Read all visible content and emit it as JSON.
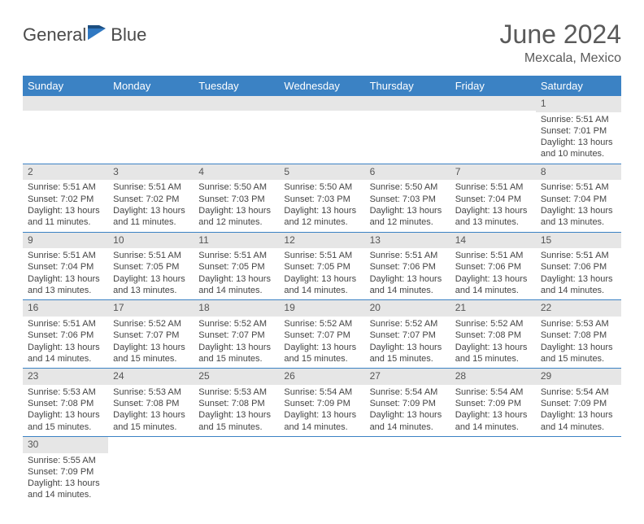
{
  "logo": {
    "word1": "General",
    "word2": "Blue"
  },
  "title": "June 2024",
  "location": "Mexcala, Mexico",
  "colors": {
    "header_bg": "#3b82c4",
    "header_text": "#ffffff",
    "daynum_bg": "#e6e6e6",
    "border": "#3b82c4",
    "title_color": "#5a5a5a",
    "body_text": "#444444"
  },
  "typography": {
    "title_fontsize": 32,
    "location_fontsize": 16,
    "dow_fontsize": 13,
    "cell_fontsize": 11
  },
  "days_of_week": [
    "Sunday",
    "Monday",
    "Tuesday",
    "Wednesday",
    "Thursday",
    "Friday",
    "Saturday"
  ],
  "weeks": [
    [
      null,
      null,
      null,
      null,
      null,
      null,
      {
        "n": "1",
        "sunrise": "Sunrise: 5:51 AM",
        "sunset": "Sunset: 7:01 PM",
        "daylight1": "Daylight: 13 hours",
        "daylight2": "and 10 minutes."
      }
    ],
    [
      {
        "n": "2",
        "sunrise": "Sunrise: 5:51 AM",
        "sunset": "Sunset: 7:02 PM",
        "daylight1": "Daylight: 13 hours",
        "daylight2": "and 11 minutes."
      },
      {
        "n": "3",
        "sunrise": "Sunrise: 5:51 AM",
        "sunset": "Sunset: 7:02 PM",
        "daylight1": "Daylight: 13 hours",
        "daylight2": "and 11 minutes."
      },
      {
        "n": "4",
        "sunrise": "Sunrise: 5:50 AM",
        "sunset": "Sunset: 7:03 PM",
        "daylight1": "Daylight: 13 hours",
        "daylight2": "and 12 minutes."
      },
      {
        "n": "5",
        "sunrise": "Sunrise: 5:50 AM",
        "sunset": "Sunset: 7:03 PM",
        "daylight1": "Daylight: 13 hours",
        "daylight2": "and 12 minutes."
      },
      {
        "n": "6",
        "sunrise": "Sunrise: 5:50 AM",
        "sunset": "Sunset: 7:03 PM",
        "daylight1": "Daylight: 13 hours",
        "daylight2": "and 12 minutes."
      },
      {
        "n": "7",
        "sunrise": "Sunrise: 5:51 AM",
        "sunset": "Sunset: 7:04 PM",
        "daylight1": "Daylight: 13 hours",
        "daylight2": "and 13 minutes."
      },
      {
        "n": "8",
        "sunrise": "Sunrise: 5:51 AM",
        "sunset": "Sunset: 7:04 PM",
        "daylight1": "Daylight: 13 hours",
        "daylight2": "and 13 minutes."
      }
    ],
    [
      {
        "n": "9",
        "sunrise": "Sunrise: 5:51 AM",
        "sunset": "Sunset: 7:04 PM",
        "daylight1": "Daylight: 13 hours",
        "daylight2": "and 13 minutes."
      },
      {
        "n": "10",
        "sunrise": "Sunrise: 5:51 AM",
        "sunset": "Sunset: 7:05 PM",
        "daylight1": "Daylight: 13 hours",
        "daylight2": "and 13 minutes."
      },
      {
        "n": "11",
        "sunrise": "Sunrise: 5:51 AM",
        "sunset": "Sunset: 7:05 PM",
        "daylight1": "Daylight: 13 hours",
        "daylight2": "and 14 minutes."
      },
      {
        "n": "12",
        "sunrise": "Sunrise: 5:51 AM",
        "sunset": "Sunset: 7:05 PM",
        "daylight1": "Daylight: 13 hours",
        "daylight2": "and 14 minutes."
      },
      {
        "n": "13",
        "sunrise": "Sunrise: 5:51 AM",
        "sunset": "Sunset: 7:06 PM",
        "daylight1": "Daylight: 13 hours",
        "daylight2": "and 14 minutes."
      },
      {
        "n": "14",
        "sunrise": "Sunrise: 5:51 AM",
        "sunset": "Sunset: 7:06 PM",
        "daylight1": "Daylight: 13 hours",
        "daylight2": "and 14 minutes."
      },
      {
        "n": "15",
        "sunrise": "Sunrise: 5:51 AM",
        "sunset": "Sunset: 7:06 PM",
        "daylight1": "Daylight: 13 hours",
        "daylight2": "and 14 minutes."
      }
    ],
    [
      {
        "n": "16",
        "sunrise": "Sunrise: 5:51 AM",
        "sunset": "Sunset: 7:06 PM",
        "daylight1": "Daylight: 13 hours",
        "daylight2": "and 14 minutes."
      },
      {
        "n": "17",
        "sunrise": "Sunrise: 5:52 AM",
        "sunset": "Sunset: 7:07 PM",
        "daylight1": "Daylight: 13 hours",
        "daylight2": "and 15 minutes."
      },
      {
        "n": "18",
        "sunrise": "Sunrise: 5:52 AM",
        "sunset": "Sunset: 7:07 PM",
        "daylight1": "Daylight: 13 hours",
        "daylight2": "and 15 minutes."
      },
      {
        "n": "19",
        "sunrise": "Sunrise: 5:52 AM",
        "sunset": "Sunset: 7:07 PM",
        "daylight1": "Daylight: 13 hours",
        "daylight2": "and 15 minutes."
      },
      {
        "n": "20",
        "sunrise": "Sunrise: 5:52 AM",
        "sunset": "Sunset: 7:07 PM",
        "daylight1": "Daylight: 13 hours",
        "daylight2": "and 15 minutes."
      },
      {
        "n": "21",
        "sunrise": "Sunrise: 5:52 AM",
        "sunset": "Sunset: 7:08 PM",
        "daylight1": "Daylight: 13 hours",
        "daylight2": "and 15 minutes."
      },
      {
        "n": "22",
        "sunrise": "Sunrise: 5:53 AM",
        "sunset": "Sunset: 7:08 PM",
        "daylight1": "Daylight: 13 hours",
        "daylight2": "and 15 minutes."
      }
    ],
    [
      {
        "n": "23",
        "sunrise": "Sunrise: 5:53 AM",
        "sunset": "Sunset: 7:08 PM",
        "daylight1": "Daylight: 13 hours",
        "daylight2": "and 15 minutes."
      },
      {
        "n": "24",
        "sunrise": "Sunrise: 5:53 AM",
        "sunset": "Sunset: 7:08 PM",
        "daylight1": "Daylight: 13 hours",
        "daylight2": "and 15 minutes."
      },
      {
        "n": "25",
        "sunrise": "Sunrise: 5:53 AM",
        "sunset": "Sunset: 7:08 PM",
        "daylight1": "Daylight: 13 hours",
        "daylight2": "and 15 minutes."
      },
      {
        "n": "26",
        "sunrise": "Sunrise: 5:54 AM",
        "sunset": "Sunset: 7:09 PM",
        "daylight1": "Daylight: 13 hours",
        "daylight2": "and 14 minutes."
      },
      {
        "n": "27",
        "sunrise": "Sunrise: 5:54 AM",
        "sunset": "Sunset: 7:09 PM",
        "daylight1": "Daylight: 13 hours",
        "daylight2": "and 14 minutes."
      },
      {
        "n": "28",
        "sunrise": "Sunrise: 5:54 AM",
        "sunset": "Sunset: 7:09 PM",
        "daylight1": "Daylight: 13 hours",
        "daylight2": "and 14 minutes."
      },
      {
        "n": "29",
        "sunrise": "Sunrise: 5:54 AM",
        "sunset": "Sunset: 7:09 PM",
        "daylight1": "Daylight: 13 hours",
        "daylight2": "and 14 minutes."
      }
    ],
    [
      {
        "n": "30",
        "sunrise": "Sunrise: 5:55 AM",
        "sunset": "Sunset: 7:09 PM",
        "daylight1": "Daylight: 13 hours",
        "daylight2": "and 14 minutes."
      },
      null,
      null,
      null,
      null,
      null,
      null
    ]
  ]
}
